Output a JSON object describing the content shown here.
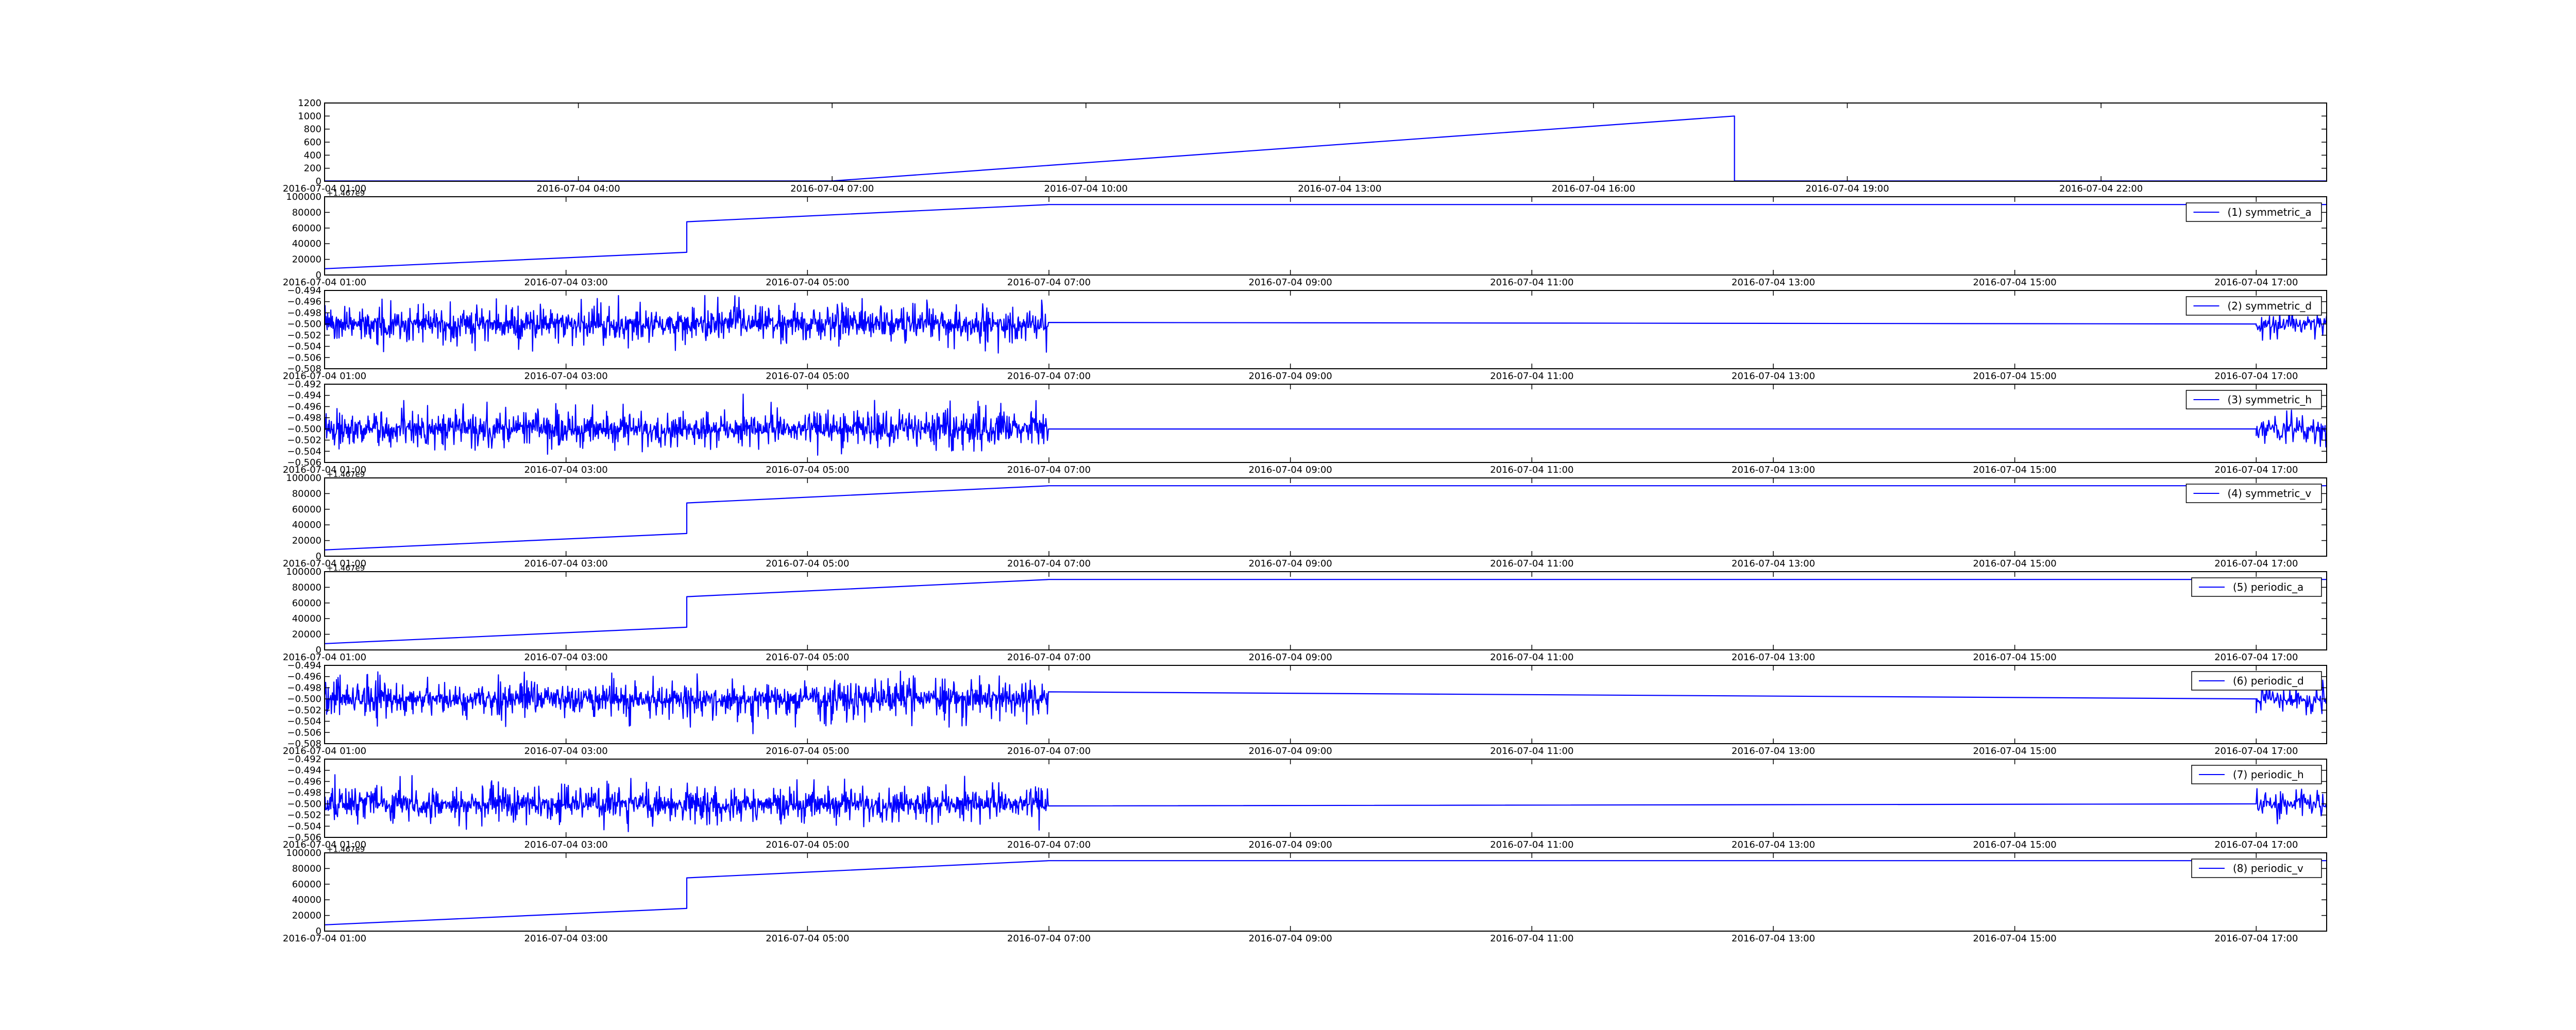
{
  "colors": {
    "line": "#0000ff",
    "axis": "#000000",
    "background": "#ffffff"
  },
  "chart_data": [
    {
      "type": "line",
      "title": "",
      "xlabel": "",
      "ylabel": "",
      "grid": false,
      "legend": null,
      "offset_text": "",
      "xlim": [
        "2016-07-04 01:00",
        "2016-07-05 00:40"
      ],
      "xticks": [
        "2016-07-04 01:00",
        "2016-07-04 04:00",
        "2016-07-04 07:00",
        "2016-07-04 10:00",
        "2016-07-04 13:00",
        "2016-07-04 16:00",
        "2016-07-04 19:00",
        "2016-07-04 22:00"
      ],
      "ylim": [
        0,
        1200
      ],
      "yticks": [
        "0",
        "200",
        "400",
        "600",
        "800",
        "1000",
        "1200"
      ],
      "series": [
        {
          "kind": "line",
          "x": [
            "2016-07-04 01:00",
            "2016-07-04 07:00",
            "2016-07-04 17:40",
            "2016-07-04 17:40",
            "2016-07-05 00:40"
          ],
          "y": [
            5,
            5,
            1000,
            5,
            5
          ]
        }
      ]
    },
    {
      "type": "line",
      "offset_text": "+1.467e9",
      "grid": false,
      "legend": {
        "label": "(1) symmetric_a",
        "position": "upper right"
      },
      "xlim": [
        "2016-07-04 01:00",
        "2016-07-04 17:35"
      ],
      "xticks": [
        "2016-07-04 01:00",
        "2016-07-04 03:00",
        "2016-07-04 05:00",
        "2016-07-04 07:00",
        "2016-07-04 09:00",
        "2016-07-04 11:00",
        "2016-07-04 13:00",
        "2016-07-04 15:00",
        "2016-07-04 17:00"
      ],
      "ylim": [
        0,
        100000
      ],
      "yticks": [
        "0",
        "20000",
        "40000",
        "60000",
        "80000",
        "100000"
      ],
      "series": [
        {
          "kind": "line",
          "x": [
            "2016-07-04 01:00",
            "2016-07-04 04:00",
            "2016-07-04 04:00",
            "2016-07-04 07:00",
            "2016-07-04 17:35"
          ],
          "y": [
            8000,
            29000,
            68000,
            90000,
            90000
          ]
        }
      ]
    },
    {
      "type": "line",
      "offset_text": "",
      "grid": false,
      "legend": {
        "label": "(2) symmetric_d",
        "position": "upper right"
      },
      "xlim": [
        "2016-07-04 01:00",
        "2016-07-04 17:35"
      ],
      "xticks": [
        "2016-07-04 01:00",
        "2016-07-04 03:00",
        "2016-07-04 05:00",
        "2016-07-04 07:00",
        "2016-07-04 09:00",
        "2016-07-04 11:00",
        "2016-07-04 13:00",
        "2016-07-04 15:00",
        "2016-07-04 17:00"
      ],
      "ylim": [
        -0.508,
        -0.494
      ],
      "yticks": [
        "−0.508",
        "−0.506",
        "−0.504",
        "−0.502",
        "−0.500",
        "−0.498",
        "−0.496",
        "−0.494"
      ],
      "series": [
        {
          "kind": "noise",
          "baseline": -0.5,
          "amplitude": 0.0055,
          "active_ranges": [
            [
              "2016-07-04 01:00",
              "2016-07-04 07:00"
            ],
            [
              "2016-07-04 17:00",
              "2016-07-04 17:35"
            ]
          ],
          "flat_value": -0.5
        }
      ]
    },
    {
      "type": "line",
      "offset_text": "",
      "grid": false,
      "legend": {
        "label": "(3) symmetric_h",
        "position": "upper right"
      },
      "xlim": [
        "2016-07-04 01:00",
        "2016-07-04 17:35"
      ],
      "xticks": [
        "2016-07-04 01:00",
        "2016-07-04 03:00",
        "2016-07-04 05:00",
        "2016-07-04 07:00",
        "2016-07-04 09:00",
        "2016-07-04 11:00",
        "2016-07-04 13:00",
        "2016-07-04 15:00",
        "2016-07-04 17:00"
      ],
      "ylim": [
        -0.506,
        -0.492
      ],
      "yticks": [
        "−0.506",
        "−0.504",
        "−0.502",
        "−0.500",
        "−0.498",
        "−0.496",
        "−0.494",
        "−0.492"
      ],
      "series": [
        {
          "kind": "noise",
          "baseline": -0.5,
          "amplitude": 0.0055,
          "active_ranges": [
            [
              "2016-07-04 01:00",
              "2016-07-04 07:00"
            ],
            [
              "2016-07-04 17:00",
              "2016-07-04 17:35"
            ]
          ],
          "flat_value": -0.5
        }
      ]
    },
    {
      "type": "line",
      "offset_text": "+1.467e9",
      "grid": false,
      "legend": {
        "label": "(4) symmetric_v",
        "position": "upper right"
      },
      "xlim": [
        "2016-07-04 01:00",
        "2016-07-04 17:35"
      ],
      "xticks": [
        "2016-07-04 01:00",
        "2016-07-04 03:00",
        "2016-07-04 05:00",
        "2016-07-04 07:00",
        "2016-07-04 09:00",
        "2016-07-04 11:00",
        "2016-07-04 13:00",
        "2016-07-04 15:00",
        "2016-07-04 17:00"
      ],
      "ylim": [
        0,
        100000
      ],
      "yticks": [
        "0",
        "20000",
        "40000",
        "60000",
        "80000",
        "100000"
      ],
      "series": [
        {
          "kind": "line",
          "x": [
            "2016-07-04 01:00",
            "2016-07-04 04:00",
            "2016-07-04 04:00",
            "2016-07-04 07:00",
            "2016-07-04 17:35"
          ],
          "y": [
            8000,
            29000,
            68000,
            90000,
            90000
          ]
        }
      ]
    },
    {
      "type": "line",
      "offset_text": "+1.467e9",
      "grid": false,
      "legend": {
        "label": "(5) periodic_a",
        "position": "upper right"
      },
      "xlim": [
        "2016-07-04 01:00",
        "2016-07-04 17:35"
      ],
      "xticks": [
        "2016-07-04 01:00",
        "2016-07-04 03:00",
        "2016-07-04 05:00",
        "2016-07-04 07:00",
        "2016-07-04 09:00",
        "2016-07-04 11:00",
        "2016-07-04 13:00",
        "2016-07-04 15:00",
        "2016-07-04 17:00"
      ],
      "ylim": [
        0,
        100000
      ],
      "yticks": [
        "0",
        "20000",
        "40000",
        "60000",
        "80000",
        "100000"
      ],
      "series": [
        {
          "kind": "line",
          "x": [
            "2016-07-04 01:00",
            "2016-07-04 04:00",
            "2016-07-04 04:00",
            "2016-07-04 07:00",
            "2016-07-04 17:35"
          ],
          "y": [
            8000,
            29000,
            68000,
            90000,
            90000
          ]
        }
      ]
    },
    {
      "type": "line",
      "offset_text": "",
      "grid": false,
      "legend": {
        "label": "(6) periodic_d",
        "position": "upper right"
      },
      "xlim": [
        "2016-07-04 01:00",
        "2016-07-04 17:35"
      ],
      "xticks": [
        "2016-07-04 01:00",
        "2016-07-04 03:00",
        "2016-07-04 05:00",
        "2016-07-04 07:00",
        "2016-07-04 09:00",
        "2016-07-04 11:00",
        "2016-07-04 13:00",
        "2016-07-04 15:00",
        "2016-07-04 17:00"
      ],
      "ylim": [
        -0.508,
        -0.494
      ],
      "yticks": [
        "−0.508",
        "−0.506",
        "−0.504",
        "−0.502",
        "−0.500",
        "−0.498",
        "−0.496",
        "−0.494"
      ],
      "series": [
        {
          "kind": "noise",
          "baseline": -0.5,
          "amplitude": 0.0055,
          "active_ranges": [
            [
              "2016-07-04 01:00",
              "2016-07-04 07:00"
            ],
            [
              "2016-07-04 17:00",
              "2016-07-04 17:35"
            ]
          ],
          "flat_value": -0.5
        }
      ]
    },
    {
      "type": "line",
      "offset_text": "",
      "grid": false,
      "legend": {
        "label": "(7) periodic_h",
        "position": "upper right"
      },
      "xlim": [
        "2016-07-04 01:00",
        "2016-07-04 17:35"
      ],
      "xticks": [
        "2016-07-04 01:00",
        "2016-07-04 03:00",
        "2016-07-04 05:00",
        "2016-07-04 07:00",
        "2016-07-04 09:00",
        "2016-07-04 11:00",
        "2016-07-04 13:00",
        "2016-07-04 15:00",
        "2016-07-04 17:00"
      ],
      "ylim": [
        -0.506,
        -0.492
      ],
      "yticks": [
        "−0.506",
        "−0.504",
        "−0.502",
        "−0.500",
        "−0.498",
        "−0.496",
        "−0.494",
        "−0.492"
      ],
      "series": [
        {
          "kind": "noise",
          "baseline": -0.5,
          "amplitude": 0.0055,
          "active_ranges": [
            [
              "2016-07-04 01:00",
              "2016-07-04 07:00"
            ],
            [
              "2016-07-04 17:00",
              "2016-07-04 17:35"
            ]
          ],
          "flat_value": -0.5
        }
      ]
    },
    {
      "type": "line",
      "offset_text": "+1.467e9",
      "grid": false,
      "legend": {
        "label": "(8) periodic_v",
        "position": "upper right"
      },
      "xlim": [
        "2016-07-04 01:00",
        "2016-07-04 17:35"
      ],
      "xticks": [
        "2016-07-04 01:00",
        "2016-07-04 03:00",
        "2016-07-04 05:00",
        "2016-07-04 07:00",
        "2016-07-04 09:00",
        "2016-07-04 11:00",
        "2016-07-04 13:00",
        "2016-07-04 15:00",
        "2016-07-04 17:00"
      ],
      "ylim": [
        0,
        100000
      ],
      "yticks": [
        "0",
        "20000",
        "40000",
        "60000",
        "80000",
        "100000"
      ],
      "series": [
        {
          "kind": "line",
          "x": [
            "2016-07-04 01:00",
            "2016-07-04 04:00",
            "2016-07-04 04:00",
            "2016-07-04 07:00",
            "2016-07-04 17:35"
          ],
          "y": [
            8000,
            29000,
            68000,
            90000,
            90000
          ]
        }
      ]
    }
  ]
}
